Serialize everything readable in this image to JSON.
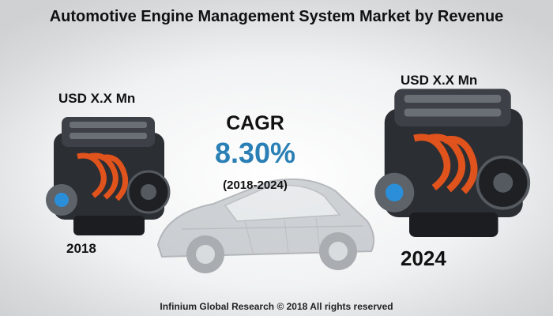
{
  "title": "Automotive Engine Management System Market by Revenue",
  "left": {
    "value": "USD X.X Mn",
    "year": "2018"
  },
  "right": {
    "value": "USD X.X Mn",
    "year": "2024"
  },
  "cagr": {
    "label": "CAGR",
    "value": "8.30%",
    "period": "(2018-2024)"
  },
  "footer": "Infinium Global Research © 2018 All rights reserved",
  "colors": {
    "cagr_value": "#2a7fb5",
    "accent_pipe": "#e0531c",
    "accent_blue": "#2a8fd8"
  }
}
